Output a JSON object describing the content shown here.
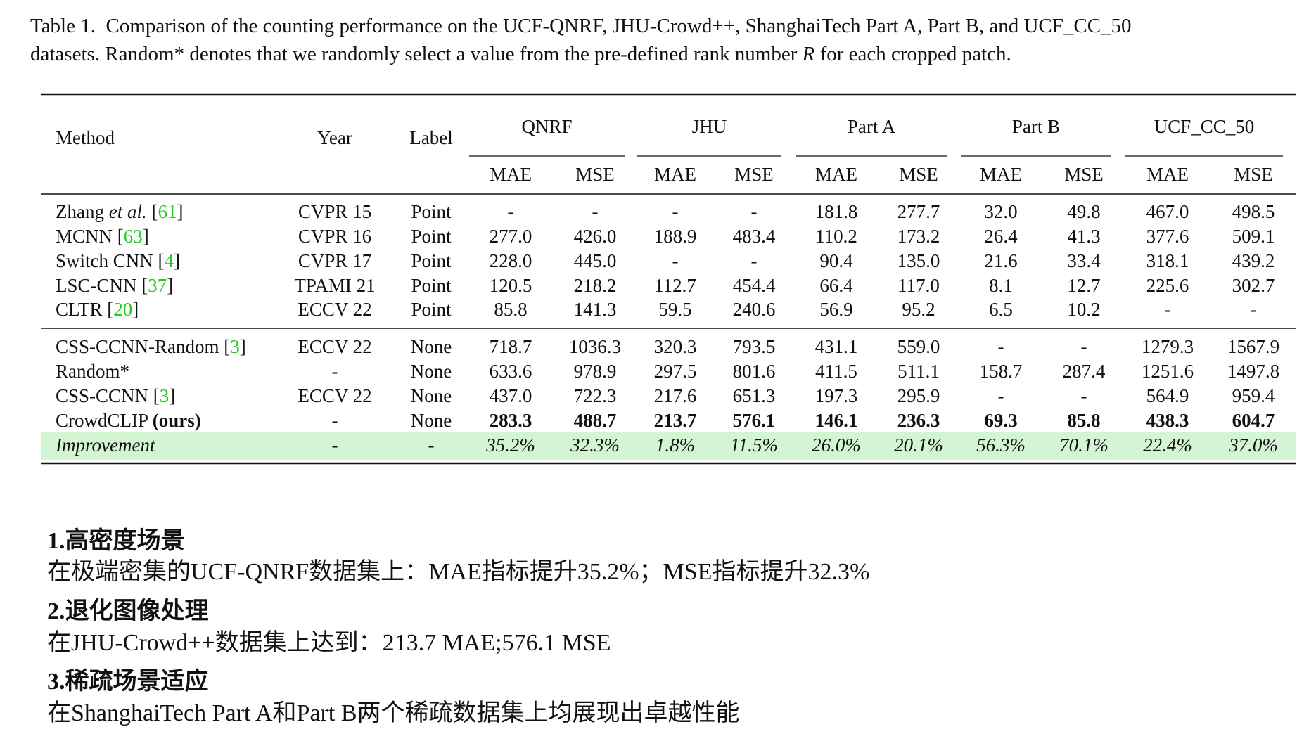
{
  "caption": {
    "line1": "Table 1.  Comparison of the counting performance on the UCF-QNRF, JHU-Crowd++, ShanghaiTech Part A, Part B, and UCF_CC_50",
    "line2": [
      {
        "text": "datasets. Random* denotes that we randomly select a value from the pre-defined rank number "
      },
      {
        "text": "R",
        "style": "italic"
      },
      {
        "text": " for each cropped patch."
      }
    ]
  },
  "table": {
    "ref_color": "#22cc22",
    "highlight_color": "#d4f5d4",
    "columns": {
      "method": "Method",
      "year": "Year",
      "label": "Label"
    },
    "groups": [
      {
        "name": "QNRF",
        "metrics": [
          "MAE",
          "MSE"
        ]
      },
      {
        "name": "JHU",
        "metrics": [
          "MAE",
          "MSE"
        ]
      },
      {
        "name": "Part A",
        "metrics": [
          "MAE",
          "MSE"
        ]
      },
      {
        "name": "Part B",
        "metrics": [
          "MAE",
          "MSE"
        ]
      },
      {
        "name": "UCF_CC_50",
        "metrics": [
          "MAE",
          "MSE"
        ]
      }
    ],
    "sections": [
      [
        {
          "method": [
            {
              "text": "Zhang "
            },
            {
              "text": "et al.",
              "style": "italic"
            },
            {
              "text": " ["
            },
            {
              "text": "61",
              "style": "ref"
            },
            {
              "text": "]"
            }
          ],
          "year": "CVPR 15",
          "label": "Point",
          "values": [
            "-",
            "-",
            "-",
            "-",
            "181.8",
            "277.7",
            "32.0",
            "49.8",
            "467.0",
            "498.5"
          ]
        },
        {
          "method": [
            {
              "text": "MCNN ["
            },
            {
              "text": "63",
              "style": "ref"
            },
            {
              "text": "]"
            }
          ],
          "year": "CVPR 16",
          "label": "Point",
          "values": [
            "277.0",
            "426.0",
            "188.9",
            "483.4",
            "110.2",
            "173.2",
            "26.4",
            "41.3",
            "377.6",
            "509.1"
          ]
        },
        {
          "method": [
            {
              "text": "Switch CNN ["
            },
            {
              "text": "4",
              "style": "ref"
            },
            {
              "text": "]"
            }
          ],
          "year": "CVPR 17",
          "label": "Point",
          "values": [
            "228.0",
            "445.0",
            "-",
            "-",
            "90.4",
            "135.0",
            "21.6",
            "33.4",
            "318.1",
            "439.2"
          ]
        },
        {
          "method": [
            {
              "text": "LSC-CNN ["
            },
            {
              "text": "37",
              "style": "ref"
            },
            {
              "text": "]"
            }
          ],
          "year": "TPAMI 21",
          "label": "Point",
          "values": [
            "120.5",
            "218.2",
            "112.7",
            "454.4",
            "66.4",
            "117.0",
            "8.1",
            "12.7",
            "225.6",
            "302.7"
          ]
        },
        {
          "method": [
            {
              "text": "CLTR ["
            },
            {
              "text": "20",
              "style": "ref"
            },
            {
              "text": "]"
            }
          ],
          "year": "ECCV 22",
          "label": "Point",
          "values": [
            "85.8",
            "141.3",
            "59.5",
            "240.6",
            "56.9",
            "95.2",
            "6.5",
            "10.2",
            "-",
            "-"
          ]
        }
      ],
      [
        {
          "method": [
            {
              "text": "CSS-CCNN-Random ["
            },
            {
              "text": "3",
              "style": "ref"
            },
            {
              "text": "]"
            }
          ],
          "year": "ECCV 22",
          "label": "None",
          "label_color": "#e00000",
          "values": [
            "718.7",
            "1036.3",
            "320.3",
            "793.5",
            "431.1",
            "559.0",
            "-",
            "-",
            "1279.3",
            "1567.9"
          ]
        },
        {
          "method": [
            {
              "text": "Random*"
            }
          ],
          "year": "-",
          "label": "None",
          "label_color": "#e00000",
          "values": [
            "633.6",
            "978.9",
            "297.5",
            "801.6",
            "411.5",
            "511.1",
            "158.7",
            "287.4",
            "1251.6",
            "1497.8"
          ]
        },
        {
          "method": [
            {
              "text": "CSS-CCNN ["
            },
            {
              "text": "3",
              "style": "ref"
            },
            {
              "text": "]"
            }
          ],
          "year": "ECCV 22",
          "label": "None",
          "label_color": "#e00000",
          "values": [
            "437.0",
            "722.3",
            "217.6",
            "651.3",
            "197.3",
            "295.9",
            "-",
            "-",
            "564.9",
            "959.4"
          ]
        },
        {
          "method": [
            {
              "text": "CrowdCLIP "
            },
            {
              "text": "(ours)",
              "style": "bold"
            }
          ],
          "year": "-",
          "label": "None",
          "label_color": "#e00000",
          "bold_values": true,
          "values": [
            "283.3",
            "488.7",
            "213.7",
            "576.1",
            "146.1",
            "236.3",
            "69.3",
            "85.8",
            "438.3",
            "604.7"
          ]
        },
        {
          "method": [
            {
              "text": "Improvement",
              "style": "italic"
            }
          ],
          "year": "-",
          "label": "-",
          "italic_values": true,
          "highlight": true,
          "values": [
            "35.2%",
            "32.3%",
            "1.8%",
            "11.5%",
            "26.0%",
            "20.1%",
            "56.3%",
            "70.1%",
            "22.4%",
            "37.0%"
          ]
        }
      ]
    ]
  },
  "notes": [
    {
      "title": "1.高密度场景",
      "text": "在极端密集的UCF-QNRF数据集上：MAE指标提升35.2%；MSE指标提升32.3%"
    },
    {
      "title": "2.退化图像处理",
      "text": "在JHU-Crowd++数据集上达到：213.7 MAE;576.1 MSE"
    },
    {
      "title": "3.稀疏场景适应",
      "text": "在ShanghaiTech Part A和Part B两个稀疏数据集上均展现出卓越性能"
    }
  ]
}
